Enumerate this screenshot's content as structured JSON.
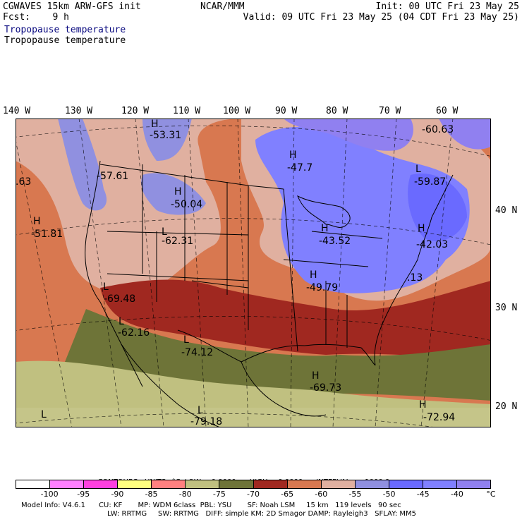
{
  "header": {
    "model": "CGWAVES 15km ARW-GFS init",
    "fcst": "Fcst:    9 h",
    "org": "NCAR/MMM",
    "init": "Init: 00 UTC Fri 23 May 25",
    "valid": "Valid: 09 UTC Fri 23 May 25 (04 CDT Fri 23 May 25)"
  },
  "field": {
    "name_colored": "Tropopause temperature",
    "name": "Tropopause temperature"
  },
  "axes": {
    "longitudes": [
      "140 W",
      "130 W",
      "120 W",
      "110 W",
      "100 W",
      "90 W",
      "80 W",
      "70 W",
      "60 W"
    ],
    "latitudes": [
      "40 N",
      "30 N",
      "20 N"
    ]
  },
  "map_labels": [
    {
      "text": "H",
      "kind": "center"
    },
    {
      "text": "-53.31",
      "kind": "value"
    },
    {
      "text": "-60.63",
      "kind": "value"
    },
    {
      "text": "H",
      "kind": "center"
    },
    {
      "text": "-47.7",
      "kind": "value"
    },
    {
      "text": "-57.61",
      "kind": "value"
    },
    {
      "text": "H",
      "kind": "center"
    },
    {
      "text": "-50.04",
      "kind": "value"
    },
    {
      "text": "L",
      "kind": "center"
    },
    {
      "text": "-59.87",
      "kind": "value"
    },
    {
      "text": ".63",
      "kind": "value"
    },
    {
      "text": "H",
      "kind": "center"
    },
    {
      "text": "-51.81",
      "kind": "value"
    },
    {
      "text": "H",
      "kind": "center"
    },
    {
      "text": "-43.52",
      "kind": "value"
    },
    {
      "text": "H",
      "kind": "center"
    },
    {
      "text": "-42.03",
      "kind": "value"
    },
    {
      "text": "L",
      "kind": "center"
    },
    {
      "text": "-62.31",
      "kind": "value"
    },
    {
      "text": "H",
      "kind": "center"
    },
    {
      "text": "-49.79",
      "kind": "value"
    },
    {
      "text": ".13",
      "kind": "value"
    },
    {
      "text": "L",
      "kind": "center"
    },
    {
      "text": "-69.48",
      "kind": "value"
    },
    {
      "text": "L",
      "kind": "center"
    },
    {
      "text": "-62.16",
      "kind": "value"
    },
    {
      "text": "L",
      "kind": "center"
    },
    {
      "text": "-74.12",
      "kind": "value"
    },
    {
      "text": "H",
      "kind": "center"
    },
    {
      "text": "-69.73",
      "kind": "value"
    },
    {
      "text": "L",
      "kind": "center"
    },
    {
      "text": "-79.18",
      "kind": "value"
    },
    {
      "text": "L",
      "kind": "center"
    },
    {
      "text": "H",
      "kind": "center"
    },
    {
      "text": "-72.94",
      "kind": "value"
    }
  ],
  "contours": {
    "label": "CONTOURS:",
    "units": "UNITS=°C",
    "low": "LOW=  0.0000",
    "high": "HIGH=  0.0000",
    "interval": "INTERVAL=    1000.0"
  },
  "colorbar": {
    "colors": [
      "#ffffff",
      "#ff80ff",
      "#ff40e0",
      "#ffff80",
      "#ff8080",
      "#c0c080",
      "#6e7438",
      "#a02820",
      "#d87850",
      "#e0b0a0",
      "#9090e0",
      "#6a6aff",
      "#8080ff",
      "#9080f0"
    ],
    "tick_labels": [
      "-100",
      "-95",
      "-90",
      "-85",
      "-80",
      "-75",
      "-70",
      "-65",
      "-60",
      "-55",
      "-50",
      "-45",
      "-40",
      "°C"
    ]
  },
  "footer": {
    "line1": "Model Info: V4.6.1      CU: KF       MP: WDM 6class  PBL: YSU       SF: Noah LSM     15 km   119 levels   90 sec",
    "line2": "LW: RRTMG     SW: RRTMG   DIFF: simple KM: 2D Smagor DAMP: Rayleigh3   SFLAY: MM5"
  }
}
